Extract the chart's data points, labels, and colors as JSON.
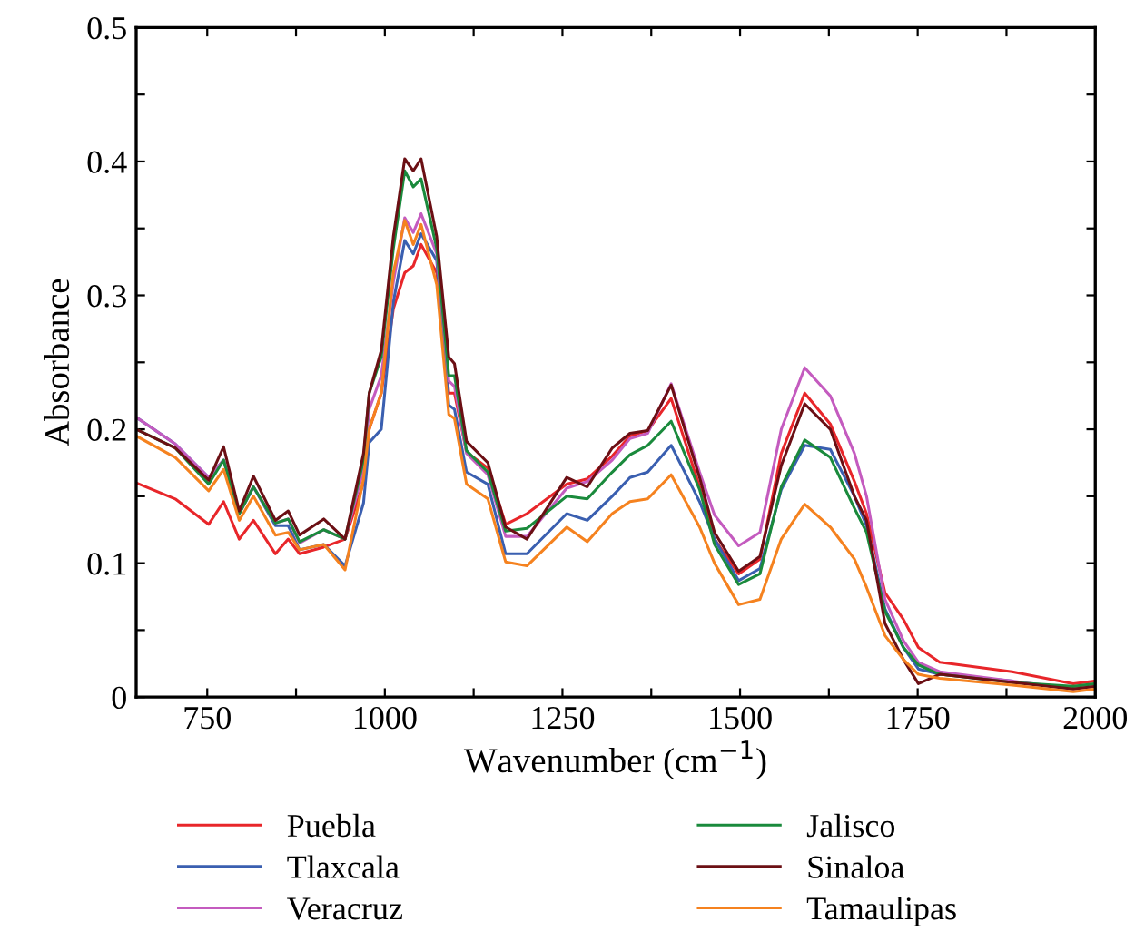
{
  "chart_data": {
    "type": "line",
    "xlabel": "Wavenumber (cm$^{−1}$)",
    "ylabel": "Absorbance",
    "x": [
      650,
      705,
      752,
      773,
      795,
      815,
      846,
      864,
      880,
      914,
      944,
      970,
      978,
      995,
      1012,
      1028,
      1040,
      1051,
      1073,
      1090,
      1098,
      1115,
      1145,
      1170,
      1200,
      1256,
      1285,
      1320,
      1345,
      1370,
      1403,
      1443,
      1464,
      1498,
      1528,
      1558,
      1591,
      1627,
      1661,
      1678,
      1704,
      1730,
      1751,
      1781,
      1883,
      1969,
      2000
    ],
    "series": [
      {
        "name": "Puebla",
        "color": "#e8262a",
        "values": [
          0.16,
          0.148,
          0.129,
          0.146,
          0.118,
          0.132,
          0.107,
          0.118,
          0.107,
          0.112,
          0.118,
          0.16,
          0.2,
          0.227,
          0.29,
          0.317,
          0.322,
          0.338,
          0.317,
          0.227,
          0.227,
          0.183,
          0.171,
          0.129,
          0.137,
          0.159,
          0.163,
          0.18,
          0.195,
          0.199,
          0.223,
          0.157,
          0.118,
          0.092,
          0.103,
          0.182,
          0.227,
          0.204,
          0.161,
          0.137,
          0.078,
          0.058,
          0.037,
          0.026,
          0.019,
          0.01,
          0.012
        ]
      },
      {
        "name": "Tlaxcala",
        "color": "#3a5fb0",
        "values": [
          0.209,
          0.189,
          0.164,
          0.177,
          0.137,
          0.157,
          0.128,
          0.128,
          0.11,
          0.114,
          0.098,
          0.145,
          0.19,
          0.2,
          0.295,
          0.341,
          0.331,
          0.346,
          0.326,
          0.218,
          0.215,
          0.168,
          0.159,
          0.107,
          0.107,
          0.137,
          0.132,
          0.15,
          0.164,
          0.168,
          0.188,
          0.146,
          0.118,
          0.087,
          0.096,
          0.155,
          0.188,
          0.185,
          0.15,
          0.128,
          0.066,
          0.037,
          0.021,
          0.017,
          0.012,
          null,
          null
        ]
      },
      {
        "name": "Veracruz",
        "color": "#c45bbf",
        "values": [
          0.209,
          0.189,
          0.164,
          0.177,
          0.137,
          0.157,
          0.13,
          0.133,
          0.115,
          0.125,
          0.118,
          0.17,
          0.215,
          0.24,
          0.31,
          0.358,
          0.347,
          0.361,
          0.331,
          0.236,
          0.232,
          0.182,
          0.166,
          0.12,
          0.12,
          0.156,
          0.161,
          0.177,
          0.193,
          0.197,
          0.234,
          0.168,
          0.136,
          0.113,
          0.123,
          0.2,
          0.246,
          0.225,
          0.182,
          0.15,
          0.073,
          0.042,
          0.026,
          0.019,
          0.012,
          0.006,
          0.008
        ]
      },
      {
        "name": "Jalisco",
        "color": "#1a8a3c",
        "values": [
          0.2,
          0.186,
          0.159,
          0.177,
          0.137,
          0.157,
          0.13,
          0.133,
          0.116,
          0.125,
          0.118,
          0.177,
          0.227,
          0.254,
          0.335,
          0.393,
          0.381,
          0.387,
          0.335,
          0.24,
          0.24,
          0.184,
          0.168,
          0.124,
          0.126,
          0.15,
          0.148,
          0.168,
          0.181,
          0.188,
          0.206,
          0.155,
          0.114,
          0.084,
          0.092,
          0.157,
          0.192,
          0.179,
          0.141,
          0.123,
          0.064,
          0.037,
          0.024,
          0.017,
          0.011,
          0.008,
          0.01
        ]
      },
      {
        "name": "Sinaloa",
        "color": "#6b0f14",
        "values": [
          0.2,
          0.186,
          0.162,
          0.187,
          0.139,
          0.165,
          0.132,
          0.139,
          0.121,
          0.133,
          0.118,
          0.182,
          0.227,
          0.259,
          0.344,
          0.402,
          0.393,
          0.402,
          0.344,
          0.254,
          0.249,
          0.191,
          0.175,
          0.127,
          0.118,
          0.164,
          0.157,
          0.186,
          0.197,
          0.199,
          0.233,
          0.164,
          0.123,
          0.094,
          0.105,
          0.173,
          0.219,
          0.2,
          0.15,
          0.132,
          0.055,
          0.028,
          0.01,
          0.017,
          0.011,
          0.006,
          0.008
        ]
      },
      {
        "name": "Tamaulipas",
        "color": "#f5821f",
        "values": [
          0.195,
          0.179,
          0.154,
          0.17,
          0.132,
          0.15,
          0.121,
          0.123,
          0.11,
          0.114,
          0.095,
          0.163,
          0.2,
          0.227,
          0.317,
          0.356,
          0.338,
          0.353,
          0.308,
          0.211,
          0.208,
          0.159,
          0.148,
          0.101,
          0.098,
          0.127,
          0.116,
          0.137,
          0.146,
          0.148,
          0.166,
          0.127,
          0.1,
          0.069,
          0.073,
          0.118,
          0.144,
          0.127,
          0.103,
          0.082,
          0.046,
          0.028,
          0.017,
          0.014,
          0.009,
          0.004,
          0.006
        ]
      }
    ],
    "xlim": [
      650,
      2000
    ],
    "xticks": [
      750,
      {
        "value": 875,
        "label": null
      },
      1000,
      {
        "value": 1125,
        "label": null
      },
      1250,
      {
        "value": 1375,
        "label": null
      },
      1500,
      {
        "value": 1625,
        "label": null
      },
      1750,
      {
        "value": 1875,
        "label": null
      },
      2000
    ],
    "ylim": [
      0,
      0.5
    ],
    "yticks": [
      0,
      {
        "value": 0.05,
        "label": null
      },
      0.1,
      {
        "value": 0.15,
        "label": null
      },
      0.2,
      {
        "value": 0.25,
        "label": null
      },
      0.3,
      {
        "value": 0.35,
        "label": null
      },
      0.4,
      {
        "value": 0.45,
        "label": null
      },
      0.5
    ],
    "grid": false,
    "legend": "bottom",
    "marker": "none",
    "line_style": "solid"
  }
}
